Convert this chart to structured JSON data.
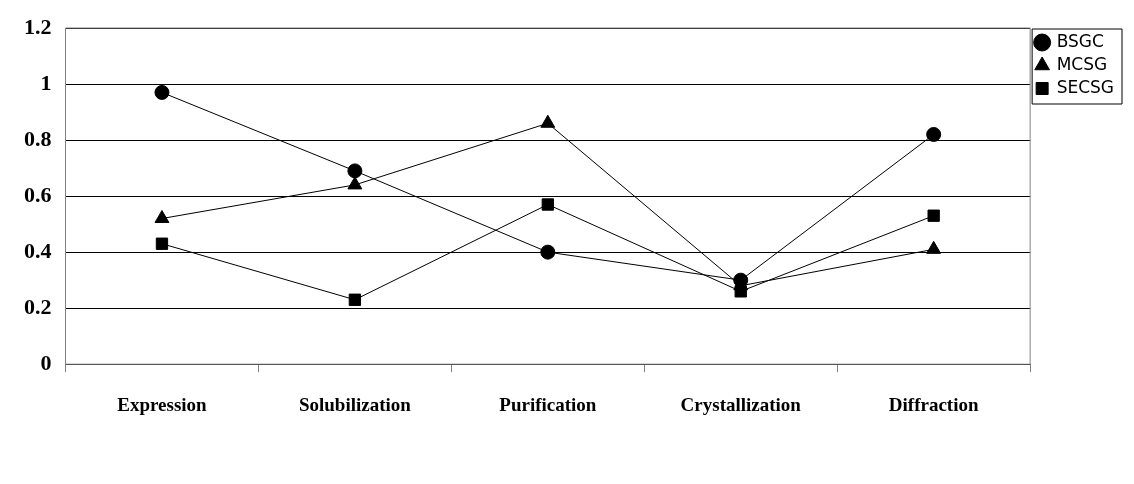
{
  "chart_data": {
    "type": "line",
    "categories": [
      "Expression",
      "Solubilization",
      "Purification",
      "Crystallization",
      "Diffraction"
    ],
    "series": [
      {
        "name": "BSGC",
        "color": "#000000",
        "marker": "circle",
        "values": [
          0.97,
          0.69,
          0.4,
          0.3,
          0.82
        ]
      },
      {
        "name": "MCSG",
        "color": "#000000",
        "marker": "triangle",
        "values": [
          0.52,
          0.64,
          0.86,
          0.28,
          0.41
        ]
      },
      {
        "name": "SECSG",
        "color": "#000000",
        "marker": "square",
        "values": [
          0.43,
          0.23,
          0.57,
          0.26,
          0.53
        ]
      }
    ],
    "ylim": [
      0,
      1.2
    ],
    "yticks": [
      0,
      0.2,
      0.4,
      0.6,
      0.8,
      1,
      1.2
    ],
    "grid": "y",
    "legend": "top right",
    "line_style": "solid"
  }
}
